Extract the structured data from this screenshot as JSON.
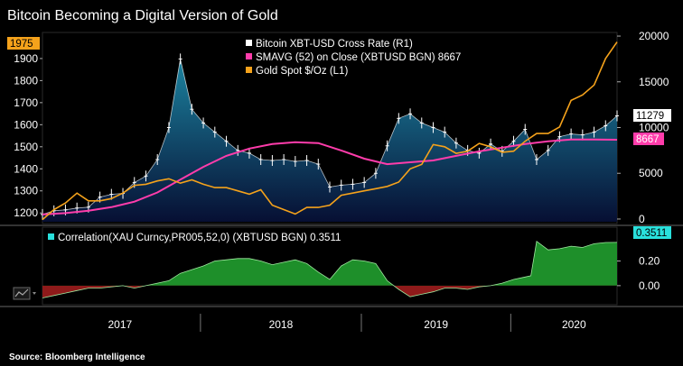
{
  "title": "Bitcoin Becoming a Digital Version of Gold",
  "source": "Source: Bloomberg Intelligence",
  "colors": {
    "bitcoin": "#ffffff",
    "smavg": "#ff3cab",
    "gold": "#f5a21b",
    "area_top": "#1d8aa8",
    "area_bottom": "#071036",
    "corr_pos": "#1e8f2a",
    "corr_neg": "#8e1a1a",
    "corr_tag": "#29e0dc"
  },
  "chart_data": [
    {
      "type": "line",
      "title": "Bitcoin Becoming a Digital Version of Gold",
      "x_ticks": [
        "2017",
        "2018",
        "2019",
        "2020"
      ],
      "y_left": {
        "ticks": [
          1200,
          1300,
          1400,
          1500,
          1600,
          1700,
          1800,
          1900
        ],
        "range": [
          1160,
          2010
        ],
        "tag": "1975"
      },
      "y_right": {
        "ticks": [
          0,
          5000,
          10000,
          15000,
          20000
        ],
        "range": [
          -300,
          20200
        ],
        "tags": [
          "11279",
          "8667"
        ]
      },
      "series": [
        {
          "name": "Gold Spot $/Oz (L1)",
          "axis": "left",
          "x": [
            0.0,
            0.02,
            0.04,
            0.06,
            0.08,
            0.1,
            0.12,
            0.14,
            0.16,
            0.18,
            0.2,
            0.22,
            0.24,
            0.26,
            0.28,
            0.3,
            0.32,
            0.34,
            0.36,
            0.38,
            0.4,
            0.42,
            0.44,
            0.46,
            0.48,
            0.5,
            0.52,
            0.54,
            0.56,
            0.58,
            0.6,
            0.62,
            0.64,
            0.66,
            0.68,
            0.7,
            0.72,
            0.74,
            0.76,
            0.78,
            0.8,
            0.82,
            0.84,
            0.86,
            0.88,
            0.9,
            0.92,
            0.94,
            0.96,
            0.98,
            1.0
          ],
          "values": [
            1170,
            1215,
            1245,
            1290,
            1255,
            1255,
            1265,
            1290,
            1325,
            1330,
            1345,
            1355,
            1335,
            1350,
            1330,
            1315,
            1315,
            1300,
            1285,
            1305,
            1235,
            1215,
            1195,
            1225,
            1225,
            1235,
            1280,
            1290,
            1300,
            1310,
            1320,
            1340,
            1400,
            1420,
            1510,
            1500,
            1470,
            1480,
            1515,
            1500,
            1475,
            1480,
            1525,
            1560,
            1560,
            1590,
            1710,
            1735,
            1780,
            1900,
            1975
          ]
        },
        {
          "name": "Bitcoin XBT-USD Cross Rate (R1)",
          "axis": "right",
          "x": [
            0.0,
            0.02,
            0.04,
            0.06,
            0.08,
            0.1,
            0.12,
            0.14,
            0.16,
            0.18,
            0.2,
            0.22,
            0.24,
            0.26,
            0.28,
            0.3,
            0.32,
            0.34,
            0.36,
            0.38,
            0.4,
            0.42,
            0.44,
            0.46,
            0.48,
            0.5,
            0.52,
            0.54,
            0.56,
            0.58,
            0.6,
            0.62,
            0.64,
            0.66,
            0.68,
            0.7,
            0.72,
            0.74,
            0.76,
            0.78,
            0.8,
            0.82,
            0.84,
            0.86,
            0.88,
            0.9,
            0.92,
            0.94,
            0.96,
            0.98,
            1.0
          ],
          "values": [
            500,
            900,
            1000,
            1200,
            1300,
            2400,
            2700,
            2800,
            4000,
            4700,
            6500,
            10000,
            17500,
            12000,
            10500,
            9500,
            8500,
            7500,
            7200,
            6500,
            6400,
            6500,
            6300,
            6400,
            6000,
            3500,
            3700,
            3800,
            4000,
            5000,
            8000,
            11000,
            11500,
            10500,
            10000,
            9500,
            8300,
            7500,
            7200,
            8200,
            7400,
            8500,
            9800,
            6500,
            7500,
            9000,
            9300,
            9200,
            9500,
            10200,
            11279
          ]
        },
        {
          "name": "SMAVG (52) on Close (XBTUSD BGN) 8667",
          "axis": "right",
          "x": [
            0.0,
            0.04,
            0.08,
            0.12,
            0.16,
            0.2,
            0.24,
            0.28,
            0.32,
            0.36,
            0.4,
            0.44,
            0.48,
            0.52,
            0.56,
            0.6,
            0.64,
            0.68,
            0.72,
            0.76,
            0.8,
            0.84,
            0.88,
            0.92,
            0.96,
            1.0
          ],
          "values": [
            500,
            650,
            900,
            1300,
            1900,
            2900,
            4300,
            5700,
            6900,
            7700,
            8200,
            8400,
            8300,
            7500,
            6600,
            6000,
            6200,
            6400,
            6900,
            7400,
            7800,
            8200,
            8500,
            8700,
            8700,
            8667
          ]
        }
      ]
    },
    {
      "type": "area",
      "title": "Correlation(XAU Curncy,PR005,52,0) (XBTUSD BGN) 0.3511",
      "y_ticks": [
        "0.20",
        "0.00"
      ],
      "y_range": [
        -0.14,
        0.46
      ],
      "tag": "0.3511",
      "x": [
        0.0,
        0.02,
        0.04,
        0.06,
        0.08,
        0.1,
        0.12,
        0.14,
        0.16,
        0.18,
        0.2,
        0.22,
        0.24,
        0.26,
        0.28,
        0.3,
        0.32,
        0.34,
        0.36,
        0.38,
        0.4,
        0.42,
        0.44,
        0.46,
        0.48,
        0.5,
        0.52,
        0.54,
        0.56,
        0.58,
        0.6,
        0.62,
        0.64,
        0.66,
        0.68,
        0.7,
        0.72,
        0.74,
        0.76,
        0.78,
        0.8,
        0.82,
        0.84,
        0.85,
        0.86,
        0.88,
        0.9,
        0.92,
        0.94,
        0.96,
        0.98,
        1.0
      ],
      "values": [
        -0.1,
        -0.08,
        -0.06,
        -0.04,
        -0.02,
        -0.02,
        -0.01,
        0.0,
        -0.02,
        0.0,
        0.02,
        0.04,
        0.1,
        0.13,
        0.16,
        0.2,
        0.21,
        0.22,
        0.22,
        0.2,
        0.17,
        0.19,
        0.21,
        0.18,
        0.11,
        0.05,
        0.16,
        0.21,
        0.2,
        0.18,
        0.04,
        -0.03,
        -0.09,
        -0.07,
        -0.05,
        -0.02,
        -0.02,
        -0.03,
        -0.01,
        0.0,
        0.02,
        0.05,
        0.07,
        0.08,
        0.36,
        0.29,
        0.3,
        0.32,
        0.31,
        0.34,
        0.35,
        0.3511
      ]
    }
  ],
  "legend": {
    "bitcoin": "Bitcoin XBT-USD Cross Rate (R1)",
    "smavg": "SMAVG (52)  on Close (XBTUSD BGN) 8667",
    "gold": "Gold Spot $/Oz (L1)"
  },
  "corr_label": "Correlation(XAU Curncy,PR005,52,0) (XBTUSD BGN) 0.3511",
  "tags": {
    "gold": "1975",
    "btc": "11279",
    "sma": "8667",
    "corr": "0.3511"
  },
  "icon": "chart-toggle-icon"
}
